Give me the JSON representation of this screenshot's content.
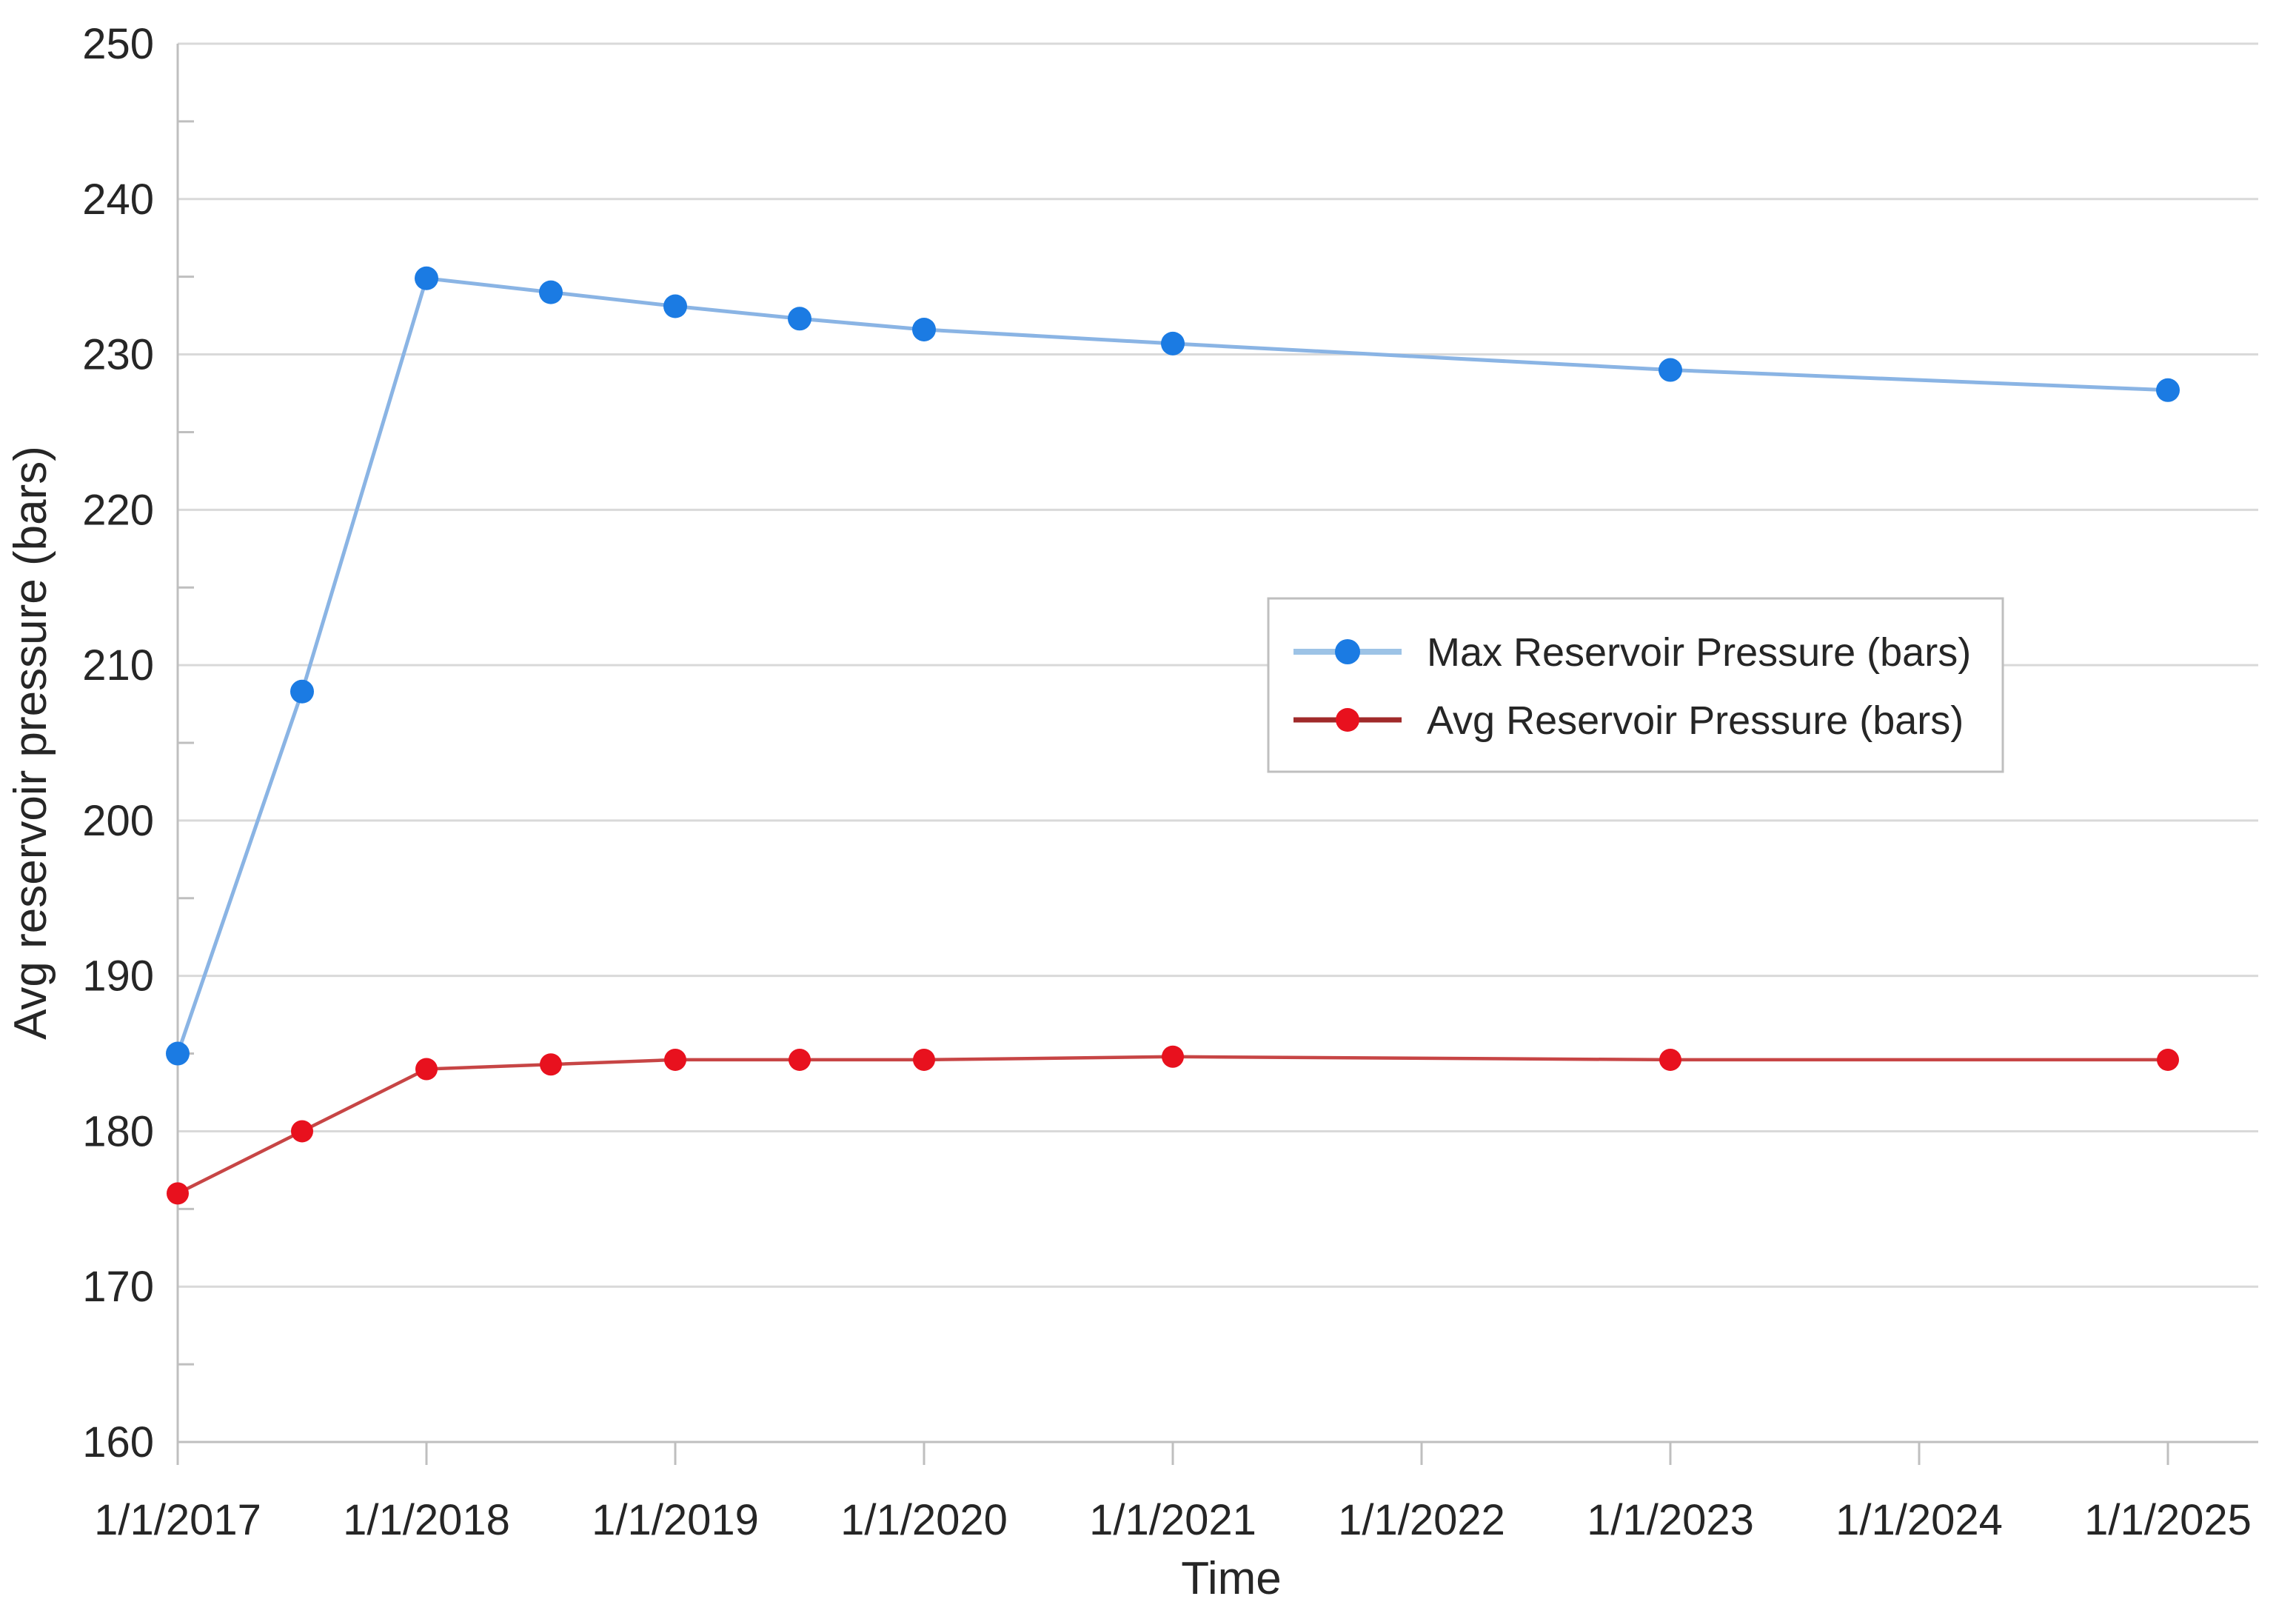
{
  "chart_data": {
    "type": "line",
    "title": "",
    "xlabel": "Time",
    "ylabel": "Avg reservoir pressure (bars)",
    "x_tick_labels": [
      "1/1/2017",
      "1/1/2018",
      "1/1/2019",
      "1/1/2020",
      "1/1/2021",
      "1/1/2022",
      "1/1/2023",
      "1/1/2024",
      "1/1/2025"
    ],
    "x_tick_years": [
      2017,
      2018,
      2019,
      2020,
      2021,
      2022,
      2023,
      2024,
      2025
    ],
    "y_tick_labels": [
      "160",
      "170",
      "180",
      "190",
      "200",
      "210",
      "220",
      "230",
      "240",
      "250"
    ],
    "ylim": [
      160,
      250
    ],
    "y_major_step": 10,
    "y_minor_step": 5,
    "x_range": [
      2017,
      2025.36
    ],
    "grid": "horizontal-major-only",
    "legend_position": "inside-upper-right",
    "x": [
      2017.0,
      2017.5,
      2018.0,
      2018.5,
      2019.0,
      2019.5,
      2020.0,
      2021.0,
      2023.0,
      2025.0
    ],
    "series": [
      {
        "name": "Max Reservoir Pressure (bars)",
        "values": [
          185,
          208.3,
          234.9,
          234.0,
          233.1,
          232.3,
          231.6,
          230.7,
          229.0,
          227.7
        ],
        "line_color": "#8AB4E4",
        "marker_color": "#1B7BE3",
        "legend_line_color": "#9DC3E6"
      },
      {
        "name": "Avg Reservoir Pressure (bars)",
        "values": [
          176,
          180,
          184,
          184.3,
          184.6,
          184.6,
          184.6,
          184.8,
          184.6,
          184.6
        ],
        "line_color": "#C74545",
        "marker_color": "#E8111E",
        "legend_line_color": "#A02A2A"
      }
    ]
  },
  "colors": {
    "background": "#ffffff",
    "gridline": "#D9D9D9",
    "axis_line": "#BFBFBF",
    "tick_text": "#262626",
    "legend_border": "#BFBFBF",
    "legend_fill": "#ffffff"
  }
}
